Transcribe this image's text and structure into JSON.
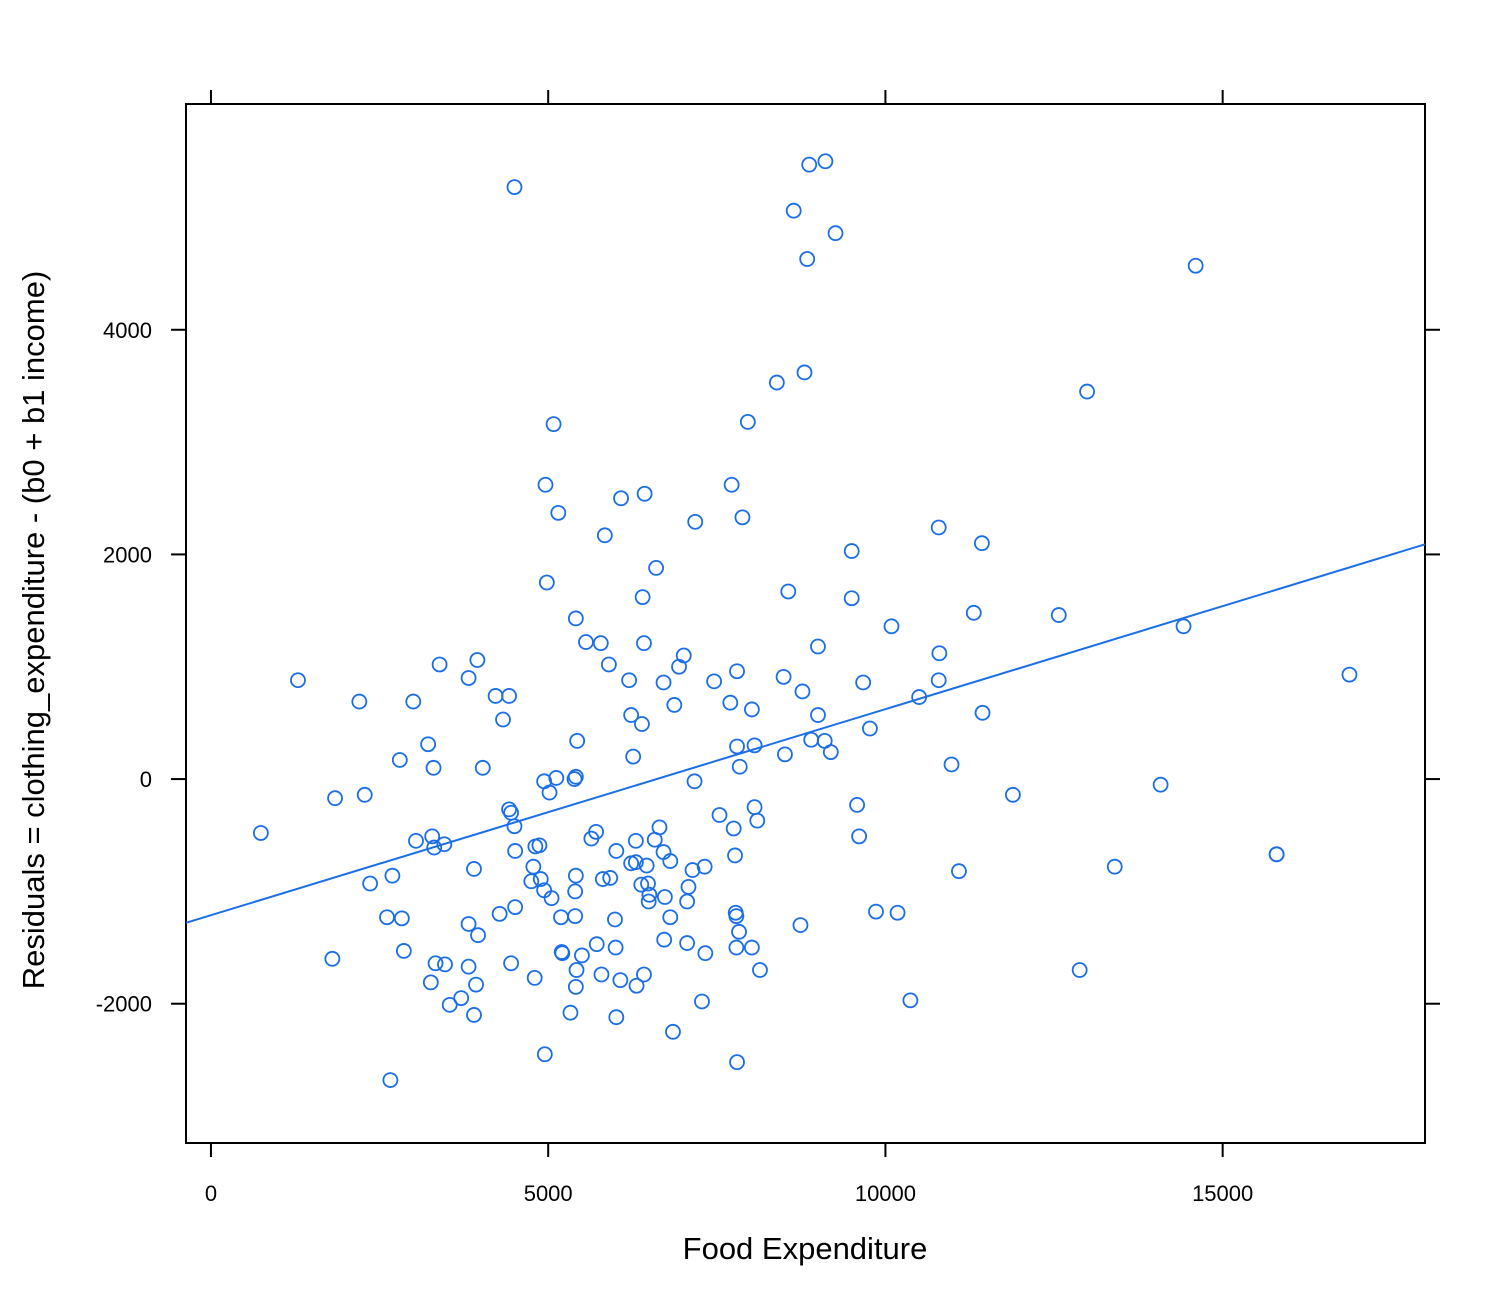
{
  "chart_data": {
    "type": "scatter",
    "title": "",
    "xlabel": "Food Expenditure",
    "ylabel": "Residuals = clothing_expenditure - (b0 + b1 income)",
    "xlim": [
      -370,
      18000
    ],
    "ylim": [
      -3240,
      6010
    ],
    "x_ticks": [
      0,
      5000,
      10000,
      15000
    ],
    "x_tick_labels": [
      "0",
      "5000",
      "10000",
      "15000"
    ],
    "y_ticks": [
      -2000,
      0,
      2000,
      4000
    ],
    "y_tick_labels": [
      "-2000",
      "0",
      "2000",
      "4000"
    ],
    "grid": false,
    "legend": "none",
    "point_color": "#1a6ee8",
    "line_color": "#1a6ee8",
    "regression_line": {
      "x": [
        -370,
        18000
      ],
      "y": [
        -1280,
        2090
      ]
    },
    "points": [
      [
        4500,
        5270
      ],
      [
        8870,
        5470
      ],
      [
        9110,
        5500
      ],
      [
        8640,
        5060
      ],
      [
        9260,
        4860
      ],
      [
        8840,
        4630
      ],
      [
        14600,
        4570
      ],
      [
        8800,
        3620
      ],
      [
        8390,
        3530
      ],
      [
        12990,
        3450
      ],
      [
        5080,
        3160
      ],
      [
        7960,
        3180
      ],
      [
        4960,
        2620
      ],
      [
        6430,
        2540
      ],
      [
        7720,
        2620
      ],
      [
        6080,
        2500
      ],
      [
        5150,
        2370
      ],
      [
        7180,
        2290
      ],
      [
        7880,
        2330
      ],
      [
        5840,
        2170
      ],
      [
        10790,
        2240
      ],
      [
        11430,
        2100
      ],
      [
        9500,
        2030
      ],
      [
        6600,
        1880
      ],
      [
        4980,
        1750
      ],
      [
        6400,
        1620
      ],
      [
        9500,
        1610
      ],
      [
        8560,
        1670
      ],
      [
        5410,
        1430
      ],
      [
        11310,
        1480
      ],
      [
        12570,
        1460
      ],
      [
        10090,
        1360
      ],
      [
        14420,
        1360
      ],
      [
        5560,
        1220
      ],
      [
        5780,
        1210
      ],
      [
        6420,
        1210
      ],
      [
        9000,
        1180
      ],
      [
        10800,
        1120
      ],
      [
        7010,
        1100
      ],
      [
        1290,
        880
      ],
      [
        3390,
        1020
      ],
      [
        3950,
        1060
      ],
      [
        5900,
        1020
      ],
      [
        6940,
        1000
      ],
      [
        3820,
        900
      ],
      [
        6200,
        880
      ],
      [
        6710,
        860
      ],
      [
        7460,
        870
      ],
      [
        8490,
        910
      ],
      [
        9670,
        860
      ],
      [
        10790,
        880
      ],
      [
        16880,
        930
      ],
      [
        7800,
        960
      ],
      [
        2200,
        690
      ],
      [
        3000,
        690
      ],
      [
        4220,
        740
      ],
      [
        4420,
        740
      ],
      [
        6870,
        660
      ],
      [
        7700,
        680
      ],
      [
        8770,
        780
      ],
      [
        10500,
        730
      ],
      [
        8020,
        620
      ],
      [
        6230,
        570
      ],
      [
        4330,
        530
      ],
      [
        6390,
        490
      ],
      [
        9000,
        570
      ],
      [
        11440,
        590
      ],
      [
        3220,
        310
      ],
      [
        8060,
        300
      ],
      [
        7800,
        290
      ],
      [
        8900,
        350
      ],
      [
        9100,
        340
      ],
      [
        9770,
        450
      ],
      [
        5430,
        340
      ],
      [
        2800,
        170
      ],
      [
        3300,
        100
      ],
      [
        4030,
        100
      ],
      [
        6260,
        200
      ],
      [
        7840,
        110
      ],
      [
        8510,
        220
      ],
      [
        9190,
        240
      ],
      [
        10980,
        130
      ],
      [
        5120,
        10
      ],
      [
        5390,
        0
      ],
      [
        5410,
        20
      ],
      [
        4940,
        -20
      ],
      [
        7170,
        -20
      ],
      [
        5020,
        -120
      ],
      [
        1840,
        -170
      ],
      [
        2280,
        -140
      ],
      [
        11890,
        -140
      ],
      [
        14080,
        -50
      ],
      [
        9580,
        -230
      ],
      [
        8060,
        -250
      ],
      [
        740,
        -480
      ],
      [
        4450,
        -300
      ],
      [
        4420,
        -270
      ],
      [
        4500,
        -420
      ],
      [
        3280,
        -510
      ],
      [
        3310,
        -610
      ],
      [
        3460,
        -580
      ],
      [
        3040,
        -550
      ],
      [
        4510,
        -640
      ],
      [
        4810,
        -600
      ],
      [
        4870,
        -590
      ],
      [
        5640,
        -530
      ],
      [
        5710,
        -470
      ],
      [
        6010,
        -640
      ],
      [
        6300,
        -550
      ],
      [
        6580,
        -540
      ],
      [
        6650,
        -430
      ],
      [
        6710,
        -650
      ],
      [
        6810,
        -730
      ],
      [
        7540,
        -320
      ],
      [
        7750,
        -440
      ],
      [
        8100,
        -370
      ],
      [
        9610,
        -510
      ],
      [
        7770,
        -680
      ],
      [
        6230,
        -750
      ],
      [
        6300,
        -740
      ],
      [
        6460,
        -770
      ],
      [
        7320,
        -780
      ],
      [
        3900,
        -800
      ],
      [
        4780,
        -780
      ],
      [
        11090,
        -820
      ],
      [
        13400,
        -780
      ],
      [
        15800,
        -670
      ],
      [
        2690,
        -860
      ],
      [
        2360,
        -930
      ],
      [
        4750,
        -910
      ],
      [
        4890,
        -890
      ],
      [
        5410,
        -860
      ],
      [
        5810,
        -890
      ],
      [
        5920,
        -880
      ],
      [
        6380,
        -940
      ],
      [
        6480,
        -930
      ],
      [
        7080,
        -960
      ],
      [
        7140,
        -810
      ],
      [
        15800,
        -670
      ],
      [
        4940,
        -990
      ],
      [
        5050,
        -1060
      ],
      [
        5400,
        -1000
      ],
      [
        6500,
        -1030
      ],
      [
        6490,
        -1090
      ],
      [
        6730,
        -1050
      ],
      [
        7060,
        -1090
      ],
      [
        4280,
        -1200
      ],
      [
        4510,
        -1140
      ],
      [
        5190,
        -1230
      ],
      [
        5400,
        -1220
      ],
      [
        5990,
        -1250
      ],
      [
        6810,
        -1230
      ],
      [
        7780,
        -1190
      ],
      [
        7790,
        -1220
      ],
      [
        9860,
        -1180
      ],
      [
        10180,
        -1190
      ],
      [
        2610,
        -1230
      ],
      [
        2830,
        -1240
      ],
      [
        3820,
        -1290
      ],
      [
        3960,
        -1390
      ],
      [
        8740,
        -1300
      ],
      [
        7830,
        -1360
      ],
      [
        2860,
        -1530
      ],
      [
        5210,
        -1550
      ],
      [
        5200,
        -1540
      ],
      [
        5500,
        -1570
      ],
      [
        5720,
        -1470
      ],
      [
        6000,
        -1500
      ],
      [
        6720,
        -1430
      ],
      [
        7060,
        -1460
      ],
      [
        7330,
        -1550
      ],
      [
        7790,
        -1500
      ],
      [
        8020,
        -1500
      ],
      [
        1800,
        -1600
      ],
      [
        3330,
        -1640
      ],
      [
        3470,
        -1650
      ],
      [
        4450,
        -1640
      ],
      [
        3820,
        -1670
      ],
      [
        5420,
        -1700
      ],
      [
        8140,
        -1700
      ],
      [
        12880,
        -1700
      ],
      [
        3260,
        -1810
      ],
      [
        3930,
        -1830
      ],
      [
        4800,
        -1770
      ],
      [
        5410,
        -1850
      ],
      [
        5790,
        -1740
      ],
      [
        6070,
        -1790
      ],
      [
        6310,
        -1840
      ],
      [
        6420,
        -1740
      ],
      [
        3540,
        -2010
      ],
      [
        3710,
        -1950
      ],
      [
        3900,
        -2100
      ],
      [
        5330,
        -2080
      ],
      [
        6010,
        -2120
      ],
      [
        7280,
        -1980
      ],
      [
        10370,
        -1970
      ],
      [
        6850,
        -2250
      ],
      [
        4950,
        -2450
      ],
      [
        7800,
        -2520
      ],
      [
        2660,
        -2680
      ]
    ]
  }
}
